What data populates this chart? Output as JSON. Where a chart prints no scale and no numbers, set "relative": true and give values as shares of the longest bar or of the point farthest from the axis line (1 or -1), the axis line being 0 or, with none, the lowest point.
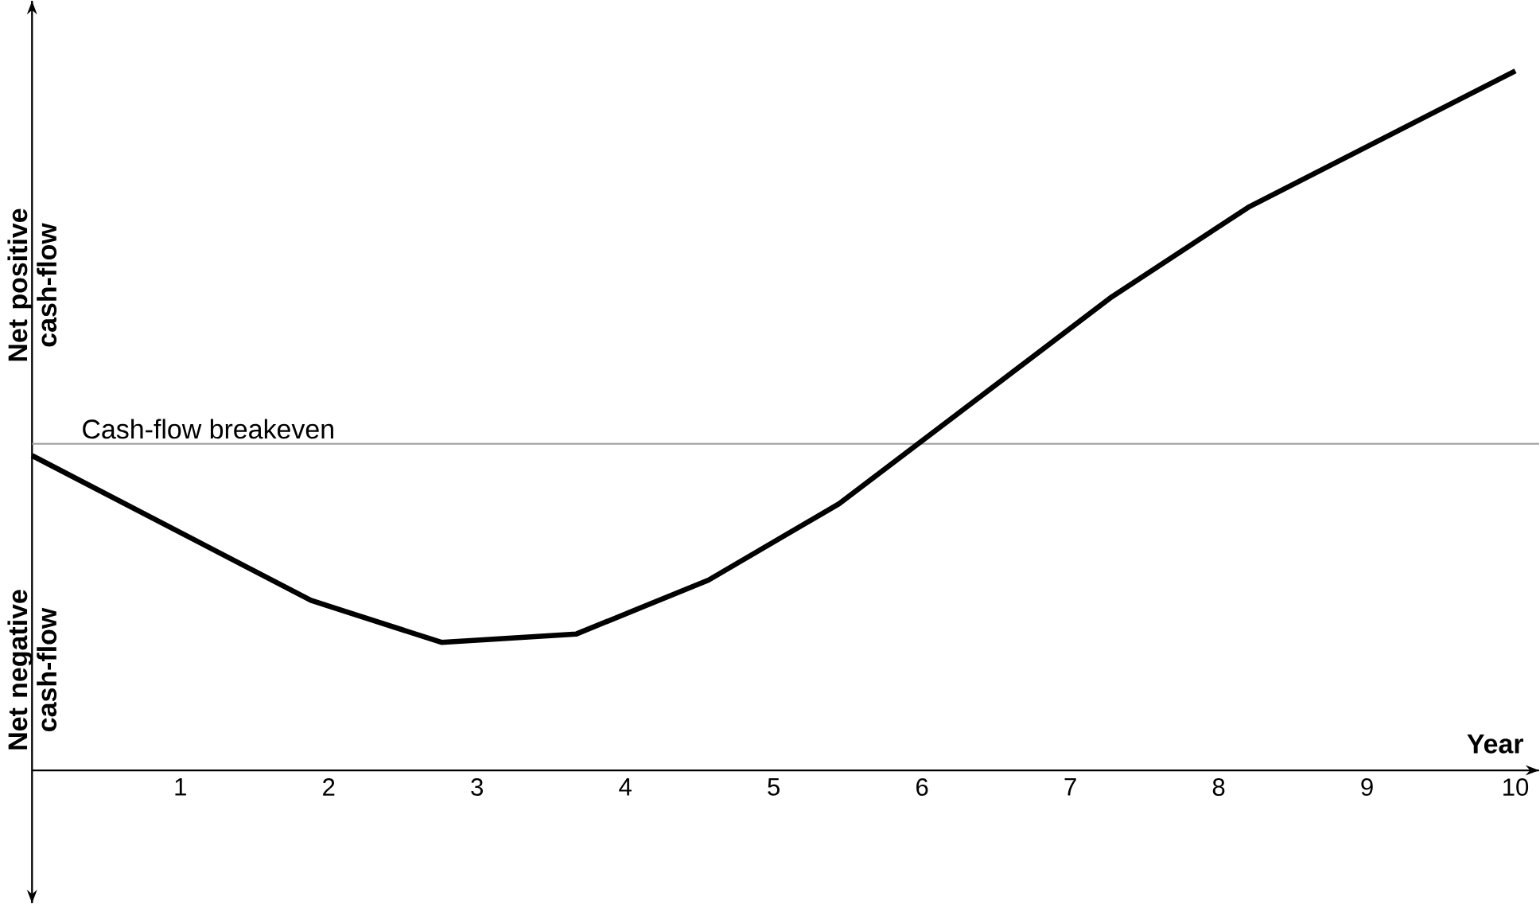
{
  "chart_data": {
    "type": "line",
    "relative": true,
    "xlabel": "Year",
    "x": [
      0,
      1.88,
      2.76,
      3.67,
      4.56,
      5.44,
      7.28,
      8.2,
      10
    ],
    "series": [
      {
        "color": "#000000",
        "values": [
          0.45,
          0.243,
          0.183,
          0.195,
          0.272,
          0.381,
          0.677,
          0.805,
          1
        ]
      }
    ],
    "xlim": [
      0,
      10.16
    ],
    "xticks": [
      1,
      2,
      3,
      4,
      5,
      6,
      7,
      8,
      9,
      10
    ],
    "ref_lines": [
      {
        "axis": "y",
        "value": 0.467,
        "label": "Cash-flow breakeven",
        "color": "#a0a0a0"
      }
    ],
    "annotations": [
      "Net positive cash-flow",
      "Net negative cash-flow"
    ],
    "grid": false,
    "marker": "none",
    "line_style": "solid",
    "tick_labels": "x"
  }
}
